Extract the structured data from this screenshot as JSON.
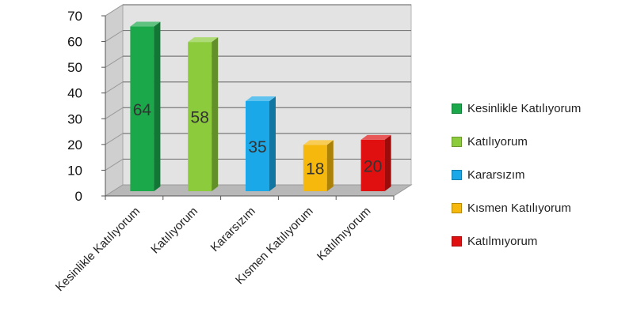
{
  "chart_data": {
    "type": "bar",
    "categories": [
      "Kesinlikle Katılıyorum",
      "Katılıyorum",
      "Kararsızım",
      "Kısmen Katılıyorum",
      "Katılmıyorum"
    ],
    "values": [
      64,
      58,
      35,
      18,
      20
    ],
    "data_labels": [
      "64",
      "58",
      "35",
      "18",
      "20"
    ],
    "colors": [
      "#1aa84a",
      "#8ccc3c",
      "#1aa8e8",
      "#f6b80c",
      "#e01010"
    ],
    "yticks": [
      "0",
      "10",
      "20",
      "30",
      "40",
      "50",
      "60",
      "70"
    ],
    "ylim": [
      0,
      70
    ],
    "grid": true,
    "legend": {
      "position": "right",
      "entries": [
        "Kesinlikle Katılıyorum",
        "Katılıyorum",
        "Kararsızım",
        "Kısmen Katılıyorum",
        "Katılmıyorum"
      ]
    },
    "title": "",
    "xlabel": "",
    "ylabel": ""
  }
}
